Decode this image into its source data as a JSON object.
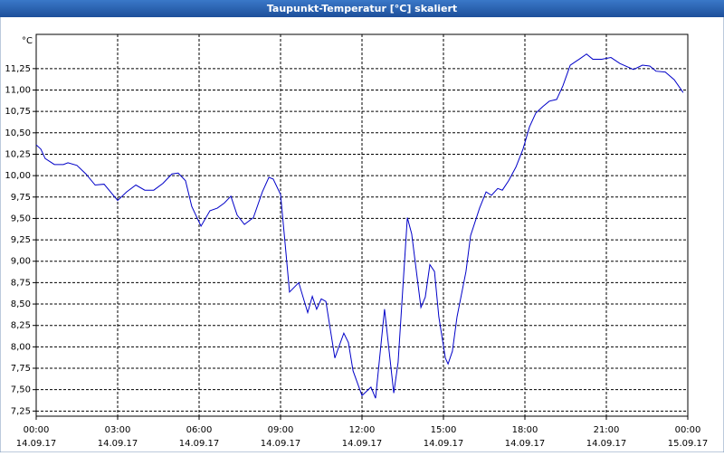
{
  "chart_data": {
    "type": "line",
    "title": "Taupunkt-Temperatur [°C] skaliert",
    "y_label": "°C",
    "x": [
      0,
      0.17,
      0.33,
      0.67,
      1,
      1.17,
      1.5,
      1.83,
      2.17,
      2.5,
      3,
      3.33,
      3.67,
      4,
      4.33,
      4.67,
      5,
      5.23,
      5.5,
      5.73,
      6.07,
      6.4,
      6.67,
      6.93,
      7.17,
      7.4,
      7.67,
      8,
      8.33,
      8.57,
      8.73,
      9,
      9.17,
      9.33,
      9.67,
      10,
      10.17,
      10.33,
      10.5,
      10.67,
      11,
      11.33,
      11.5,
      11.67,
      12,
      12.33,
      12.5,
      12.83,
      13.17,
      13.33,
      13.67,
      13.83,
      14.17,
      14.33,
      14.5,
      14.67,
      14.83,
      15.07,
      15.17,
      15.33,
      15.5,
      15.83,
      16,
      16.33,
      16.57,
      16.77,
      17,
      17.17,
      17.4,
      17.67,
      17.93,
      18.17,
      18.4,
      18.67,
      18.9,
      19.17,
      19.4,
      19.67,
      20,
      20.27,
      20.5,
      20.83,
      21.17,
      21.5,
      22,
      22.33,
      22.6,
      22.83,
      23.17,
      23.5,
      23.83
    ],
    "series": [
      {
        "name": "Taupunkt-Temperatur",
        "color": "#0000c8",
        "values": [
          10.36,
          10.31,
          10.2,
          10.13,
          10.13,
          10.15,
          10.12,
          10.02,
          9.89,
          9.9,
          9.71,
          9.81,
          9.89,
          9.83,
          9.83,
          9.91,
          10.02,
          10.03,
          9.94,
          9.64,
          9.41,
          9.59,
          9.62,
          9.68,
          9.76,
          9.54,
          9.43,
          9.51,
          9.81,
          9.98,
          9.96,
          9.78,
          9.2,
          8.64,
          8.75,
          8.4,
          8.59,
          8.44,
          8.56,
          8.53,
          7.87,
          8.16,
          8.05,
          7.72,
          7.43,
          7.53,
          7.4,
          8.44,
          7.46,
          7.82,
          9.51,
          9.32,
          8.46,
          8.58,
          8.96,
          8.88,
          8.35,
          7.87,
          7.8,
          7.95,
          8.35,
          8.88,
          9.3,
          9.62,
          9.81,
          9.77,
          9.85,
          9.83,
          9.94,
          10.1,
          10.31,
          10.57,
          10.73,
          10.81,
          10.87,
          10.89,
          11.05,
          11.29,
          11.36,
          11.42,
          11.36,
          11.36,
          11.38,
          11.31,
          11.24,
          11.29,
          11.28,
          11.22,
          11.21,
          11.12,
          10.97
        ]
      }
    ],
    "xlim": [
      0,
      24
    ],
    "xticks": [
      {
        "value": 0,
        "label": "00:00"
      },
      {
        "value": 3,
        "label": "03:00"
      },
      {
        "value": 6,
        "label": "06:00"
      },
      {
        "value": 9,
        "label": "09:00"
      },
      {
        "value": 12,
        "label": "12:00"
      },
      {
        "value": 15,
        "label": "15:00"
      },
      {
        "value": 18,
        "label": "18:00"
      },
      {
        "value": 21,
        "label": "21:00"
      },
      {
        "value": 24,
        "label": "00:00"
      }
    ],
    "xtick_dates": [
      "14.09.17",
      "14.09.17",
      "14.09.17",
      "14.09.17",
      "14.09.17",
      "14.09.17",
      "14.09.17",
      "14.09.17",
      "15.09.17"
    ],
    "ylim": [
      7.19,
      11.65
    ],
    "yticks": [
      {
        "value": 7.25,
        "label": "7,25"
      },
      {
        "value": 7.5,
        "label": "7,50"
      },
      {
        "value": 7.75,
        "label": "7,75"
      },
      {
        "value": 8,
        "label": "8,00"
      },
      {
        "value": 8.25,
        "label": "8,25"
      },
      {
        "value": 8.5,
        "label": "8,50"
      },
      {
        "value": 8.75,
        "label": "8,75"
      },
      {
        "value": 9,
        "label": "9,00"
      },
      {
        "value": 9.25,
        "label": "9,25"
      },
      {
        "value": 9.5,
        "label": "9,50"
      },
      {
        "value": 9.75,
        "label": "9,75"
      },
      {
        "value": 10,
        "label": "10,00"
      },
      {
        "value": 10.25,
        "label": "10,25"
      },
      {
        "value": 10.5,
        "label": "10,50"
      },
      {
        "value": 10.75,
        "label": "10,75"
      },
      {
        "value": 11,
        "label": "11,00"
      },
      {
        "value": 11.25,
        "label": "11,25"
      }
    ],
    "grid": true
  }
}
